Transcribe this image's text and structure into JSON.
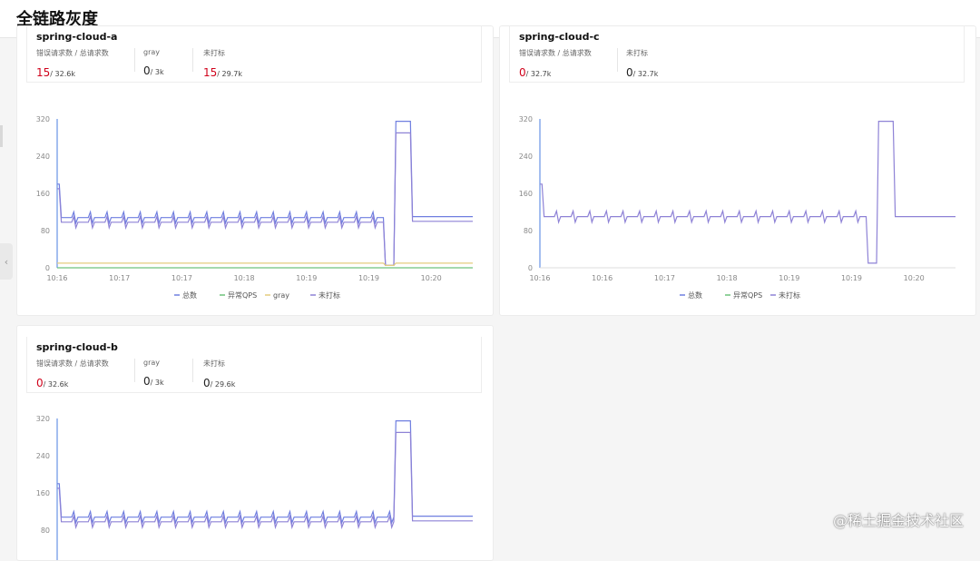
{
  "page": {
    "title": "全链路灰度"
  },
  "watermark": "@稀土掘金技术社区",
  "colors": {
    "total": "#6f7fe0",
    "abnormal": "#6dc27a",
    "gray": "#e4cc7e",
    "untagged": "#8e82d6",
    "error": "#d0021b",
    "axis": "#4a7de0"
  },
  "services": [
    {
      "name": "spring-cloud-a",
      "metrics": [
        {
          "label": "错误请求数 / 总请求数",
          "value": "15",
          "total": "/ 32.6k",
          "highlight": true
        },
        {
          "label": "gray",
          "value": "0",
          "total": "/ 3k",
          "highlight": false
        },
        {
          "label": "未打标",
          "value": "15",
          "total": "/ 29.7k",
          "highlight": true
        }
      ],
      "chart_data": {
        "type": "line",
        "y_ticks": [
          "320",
          "240",
          "160",
          "80",
          "0"
        ],
        "ylim": [
          0,
          320
        ],
        "x_ticks": [
          "10:16",
          "10:17",
          "10:17",
          "10:18",
          "10:19",
          "10:19",
          "10:20"
        ],
        "legend": [
          "总数",
          "异常QPS",
          "gray",
          "未打标"
        ],
        "series": [
          {
            "name": "总数",
            "baseline": 108,
            "spike": 180,
            "dip": 5,
            "peak": 315,
            "after": 110
          },
          {
            "name": "未打标",
            "baseline": 98,
            "spike": 170,
            "dip": 5,
            "peak": 290,
            "after": 100
          },
          {
            "name": "gray",
            "baseline": 10,
            "dip": 5,
            "after": 10
          },
          {
            "name": "异常QPS",
            "baseline": 0,
            "after": 0
          }
        ]
      }
    },
    {
      "name": "spring-cloud-c",
      "metrics": [
        {
          "label": "错误请求数 / 总请求数",
          "value": "0",
          "total": "/ 32.7k",
          "highlight": true
        },
        {
          "label": "未打标",
          "value": "0",
          "total": "/ 32.7k",
          "highlight": false
        }
      ],
      "chart_data": {
        "type": "line",
        "y_ticks": [
          "320",
          "240",
          "160",
          "80",
          "0"
        ],
        "ylim": [
          0,
          320
        ],
        "x_ticks": [
          "10:16",
          "10:16",
          "10:17",
          "10:18",
          "10:19",
          "10:19",
          "10:20"
        ],
        "legend": [
          "总数",
          "异常QPS",
          "未打标"
        ],
        "series": [
          {
            "name": "未打标",
            "baseline": 110,
            "spike": 180,
            "dip": 10,
            "peak": 315,
            "after": 110
          }
        ]
      }
    },
    {
      "name": "spring-cloud-b",
      "metrics": [
        {
          "label": "错误请求数 / 总请求数",
          "value": "0",
          "total": "/ 32.6k",
          "highlight": true
        },
        {
          "label": "gray",
          "value": "0",
          "total": "/ 3k",
          "highlight": false
        },
        {
          "label": "未打标",
          "value": "0",
          "total": "/ 29.6k",
          "highlight": false
        }
      ],
      "chart_data": {
        "type": "line",
        "y_ticks": [
          "320",
          "240",
          "160",
          "80"
        ],
        "ylim": [
          0,
          320
        ],
        "x_ticks": [],
        "legend": [],
        "series": [
          {
            "name": "总数",
            "baseline": 108,
            "spike": 180,
            "peak": 315,
            "after": 110
          },
          {
            "name": "未打标",
            "baseline": 98,
            "spike": 170,
            "peak": 290,
            "after": 100
          }
        ]
      }
    }
  ]
}
